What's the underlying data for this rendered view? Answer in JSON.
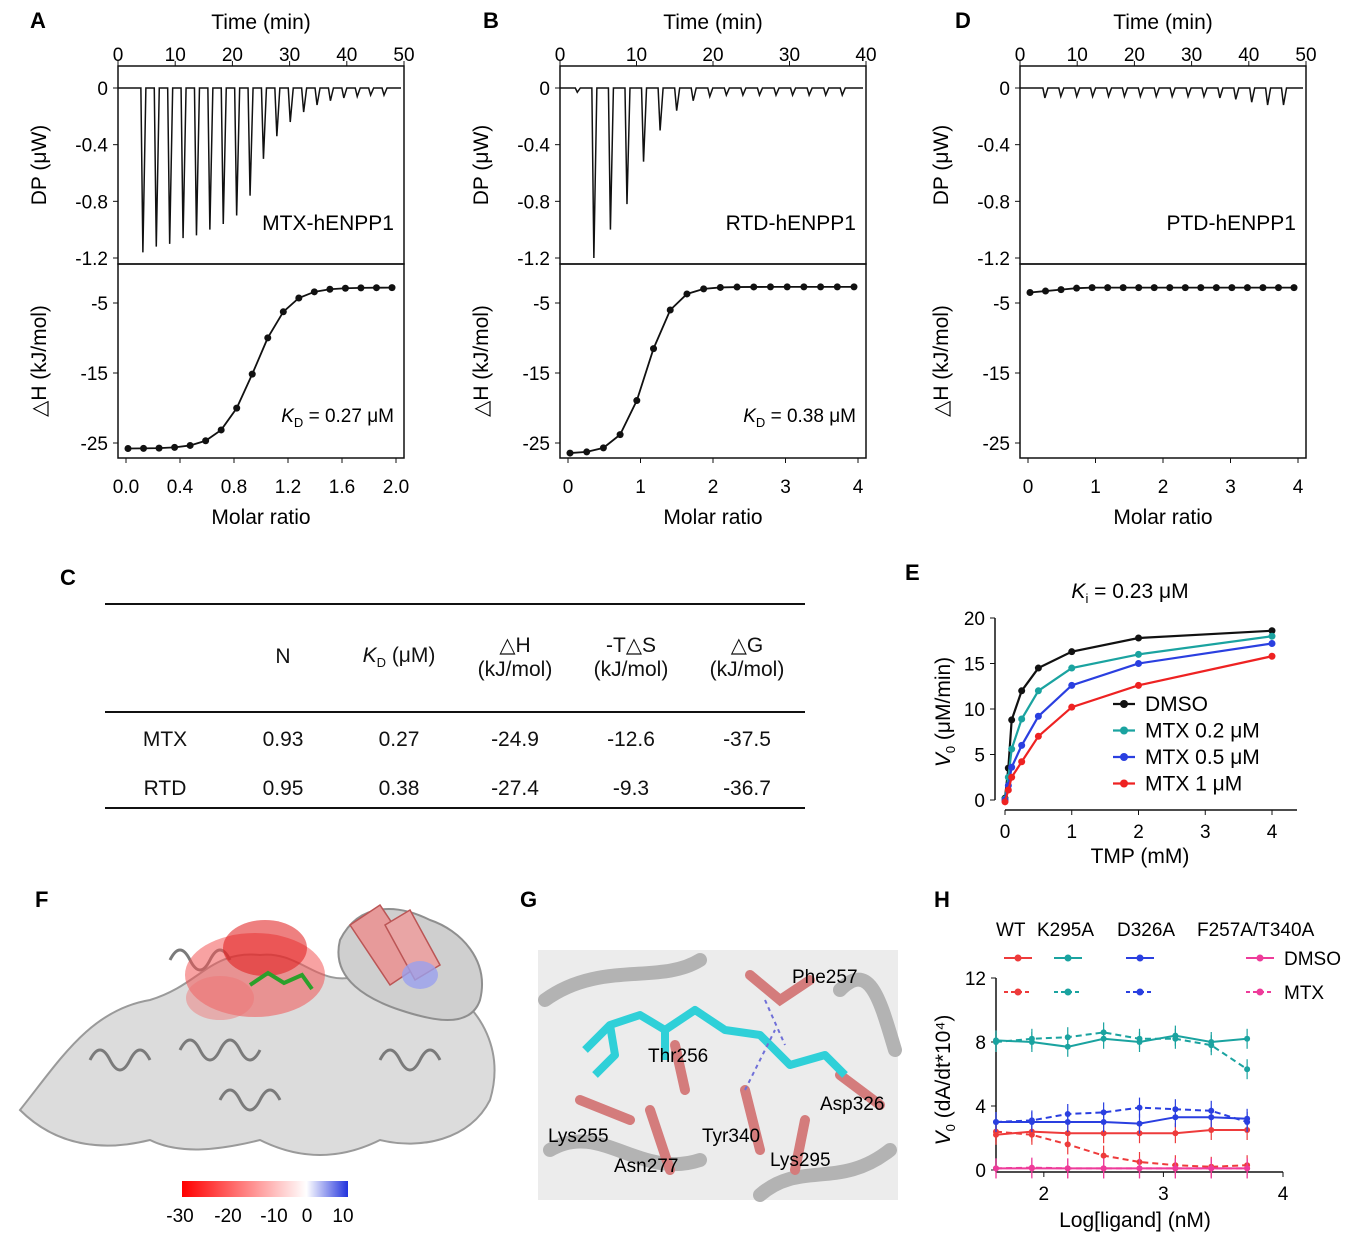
{
  "panel_labels": {
    "A": "A",
    "B": "B",
    "C": "C",
    "D": "D",
    "E": "E",
    "F": "F",
    "G": "G",
    "H": "H"
  },
  "itc_panels": [
    {
      "label": "A",
      "top_axis_title": "Time (min)",
      "top_ticks": [
        "0",
        "10",
        "20",
        "30",
        "40",
        "50"
      ],
      "dp_ylabel": "DP (μW)",
      "dp_ticks": [
        "0",
        "-0.4",
        "-0.8",
        "-1.2"
      ],
      "dh_ylabel": "△H (kJ/mol)",
      "dh_ticks": [
        "-5",
        "-15",
        "-25"
      ],
      "xlabel": "Molar ratio",
      "x_ticks": [
        "0.0",
        "0.4",
        "0.8",
        "1.2",
        "1.6",
        "2.0"
      ],
      "sample": "MTX-hENPP1",
      "kd_prefix": "K",
      "kd_sub": "D",
      "kd_value": " = 0.27 μM"
    },
    {
      "label": "B",
      "top_axis_title": "Time (min)",
      "top_ticks": [
        "0",
        "10",
        "20",
        "30",
        "40"
      ],
      "dp_ylabel": "DP (μW)",
      "dp_ticks": [
        "0",
        "-0.4",
        "-0.8",
        "-1.2"
      ],
      "dh_ylabel": "△H (kJ/mol)",
      "dh_ticks": [
        "-5",
        "-15",
        "-25"
      ],
      "xlabel": "Molar ratio",
      "x_ticks": [
        "0",
        "1",
        "2",
        "3",
        "4"
      ],
      "sample": "RTD-hENPP1",
      "kd_prefix": "K",
      "kd_sub": "D",
      "kd_value": " = 0.38 μM"
    },
    {
      "label": "D",
      "top_axis_title": "Time (min)",
      "top_ticks": [
        "0",
        "10",
        "20",
        "30",
        "40",
        "50"
      ],
      "dp_ylabel": "DP (μW)",
      "dp_ticks": [
        "0",
        "-0.4",
        "-0.8",
        "-1.2"
      ],
      "dh_ylabel": "△H (kJ/mol)",
      "dh_ticks": [
        "-5",
        "-15",
        "-25"
      ],
      "xlabel": "Molar ratio",
      "x_ticks": [
        "0",
        "1",
        "2",
        "3",
        "4"
      ],
      "sample": "PTD-hENPP1",
      "kd_prefix": "",
      "kd_sub": "",
      "kd_value": ""
    }
  ],
  "table": {
    "headers": [
      {
        "l1": "",
        "l2": ""
      },
      {
        "l1": "N",
        "l2": ""
      },
      {
        "l1": "K",
        "sub": "D",
        "l1b": " (μM)",
        "l2": ""
      },
      {
        "l1": "△H",
        "l2": "(kJ/mol)"
      },
      {
        "l1": "-T△S",
        "l2": "(kJ/mol)"
      },
      {
        "l1": "△G",
        "l2": "(kJ/mol)"
      }
    ],
    "rows": [
      [
        "MTX",
        "0.93",
        "0.27",
        "-24.9",
        "-12.6",
        "-37.5"
      ],
      [
        "RTD",
        "0.95",
        "0.38",
        "-27.4",
        "-9.3",
        "-36.7"
      ]
    ]
  },
  "panel_e": {
    "title_prefix": "K",
    "title_sub": "i",
    "title_value": " = 0.23 μM",
    "ylabel_prefix": "V",
    "ylabel_sub": "0",
    "ylabel_rest": " (μM/min)",
    "xlabel": "TMP (mM)",
    "legend": [
      "DMSO",
      "MTX  0.2 μM",
      "MTX  0.5 μM",
      "MTX  1 μM"
    ]
  },
  "panel_f": {
    "colorbar_ticks": [
      "-30",
      "-20",
      "-10",
      "0",
      "10"
    ]
  },
  "panel_g": {
    "residues": [
      "Phe257",
      "Thr256",
      "Asp326",
      "Lys255",
      "Tyr340",
      "Asn277",
      "Lys295"
    ]
  },
  "panel_h": {
    "legend_cols": [
      "WT",
      "K295A",
      "D326A",
      "F257A/T340A"
    ],
    "legend_rows": [
      "DMSO",
      "MTX"
    ],
    "ylabel_prefix": "V",
    "ylabel_sub": "0",
    "ylabel_rest": " (dA/dt*10⁴)",
    "xlabel": "Log[ligand] (nM)"
  },
  "chart_data": [
    {
      "panel": "E",
      "type": "line",
      "xlabel": "TMP (mM)",
      "ylabel": "V0 (μM/min)",
      "xlim": [
        0,
        4
      ],
      "ylim": [
        0,
        20
      ],
      "x_ticks": [
        0,
        1,
        2,
        3,
        4
      ],
      "y_ticks": [
        0,
        5,
        10,
        15,
        20
      ],
      "x": [
        0.0,
        0.05,
        0.1,
        0.25,
        0.5,
        1,
        2,
        4
      ],
      "series": [
        {
          "name": "DMSO",
          "color": "#111111",
          "values": [
            0.2,
            3.5,
            8.8,
            12.0,
            14.5,
            16.3,
            17.8,
            18.6
          ]
        },
        {
          "name": "MTX  0.2 μM",
          "color": "#1aa3a0",
          "values": [
            0.1,
            2.5,
            5.6,
            8.9,
            12.0,
            14.5,
            16.0,
            18.0
          ]
        },
        {
          "name": "MTX  0.5 μM",
          "color": "#2a3fe0",
          "values": [
            0.0,
            1.6,
            3.6,
            6.0,
            9.2,
            12.6,
            15.0,
            17.2
          ]
        },
        {
          "name": "MTX  1 μM",
          "color": "#ee2222",
          "values": [
            -0.2,
            1.1,
            2.5,
            4.2,
            7.0,
            10.2,
            12.6,
            15.8
          ]
        }
      ]
    },
    {
      "panel": "H",
      "type": "line",
      "xlabel": "Log[ligand] (nM)",
      "ylabel": "V0 (dA/dt*10⁴)",
      "xlim": [
        1.6,
        4
      ],
      "ylim": [
        0,
        12
      ],
      "x_ticks": [
        2,
        3,
        4
      ],
      "y_ticks": [
        0,
        4,
        8,
        12
      ],
      "x": [
        1.6,
        1.9,
        2.2,
        2.5,
        2.8,
        3.1,
        3.4,
        3.7
      ],
      "series": [
        {
          "name": "WT DMSO",
          "color": "#ee3b3b",
          "dash": false,
          "values": [
            2.2,
            2.4,
            2.3,
            2.3,
            2.3,
            2.3,
            2.5,
            2.5
          ]
        },
        {
          "name": "WT MTX",
          "color": "#ee3b3b",
          "dash": true,
          "values": [
            2.4,
            2.2,
            1.6,
            0.9,
            0.5,
            0.3,
            0.2,
            0.3
          ]
        },
        {
          "name": "K295A DMSO",
          "color": "#1aa3a0",
          "dash": false,
          "values": [
            8.1,
            8.0,
            7.7,
            8.2,
            8.0,
            8.4,
            8.0,
            8.2
          ]
        },
        {
          "name": "K295A MTX",
          "color": "#1aa3a0",
          "dash": true,
          "values": [
            8.0,
            8.2,
            8.3,
            8.6,
            8.2,
            8.2,
            7.8,
            6.3
          ]
        },
        {
          "name": "D326A DMSO",
          "color": "#2a3fe0",
          "dash": false,
          "values": [
            3.0,
            3.0,
            3.0,
            3.0,
            2.9,
            3.3,
            3.3,
            3.2
          ]
        },
        {
          "name": "D326A MTX",
          "color": "#2a3fe0",
          "dash": true,
          "values": [
            3.0,
            3.1,
            3.5,
            3.6,
            3.9,
            3.8,
            3.7,
            3.0
          ]
        },
        {
          "name": "F257A/T340A DMSO",
          "color": "#ee3b9a",
          "dash": false,
          "values": [
            0.1,
            0.1,
            0.1,
            0.1,
            0.1,
            0.1,
            0.1,
            0.1
          ]
        },
        {
          "name": "F257A/T340A MTX",
          "color": "#ee3b9a",
          "dash": true,
          "values": [
            0.1,
            0.15,
            0.1,
            0.1,
            0.1,
            0.1,
            0.1,
            0.1
          ]
        }
      ]
    }
  ]
}
